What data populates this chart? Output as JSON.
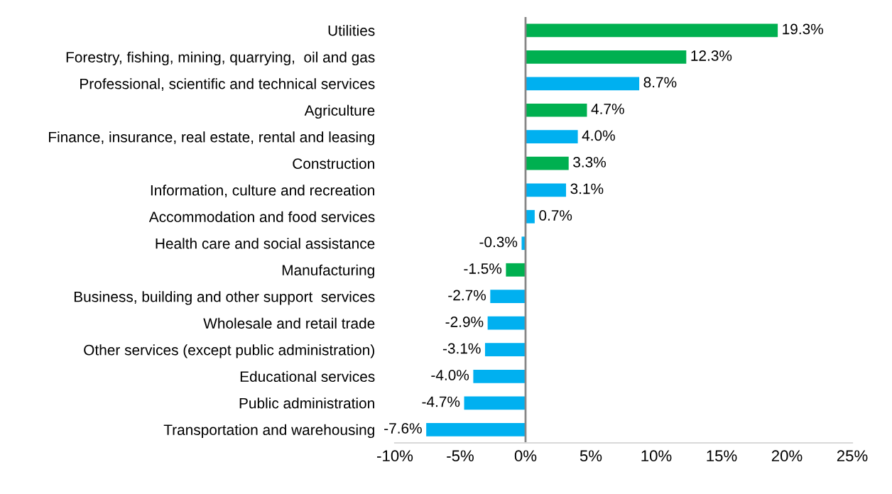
{
  "chart_data": {
    "type": "bar",
    "orientation": "horizontal",
    "categories": [
      "Utilities",
      "Forestry, fishing, mining, quarrying,  oil and gas",
      "Professional, scientific and technical services",
      "Agriculture",
      "Finance, insurance, real estate, rental and leasing",
      "Construction",
      "Information, culture and recreation",
      "Accommodation and food services",
      "Health care and social assistance",
      "Manufacturing",
      "Business, building and other support  services",
      "Wholesale and retail trade",
      "Other services (except public administration)",
      "Educational services",
      "Public administration",
      "Transportation and warehousing"
    ],
    "values": [
      19.3,
      12.3,
      8.7,
      4.7,
      4.0,
      3.3,
      3.1,
      0.7,
      -0.3,
      -1.5,
      -2.7,
      -2.9,
      -3.1,
      -4.0,
      -4.7,
      -7.6
    ],
    "colors": [
      "#00b050",
      "#00b050",
      "#00b0f0",
      "#00b050",
      "#00b0f0",
      "#00b050",
      "#00b0f0",
      "#00b0f0",
      "#00b0f0",
      "#00b050",
      "#00b0f0",
      "#00b0f0",
      "#00b0f0",
      "#00b0f0",
      "#00b0f0",
      "#00b0f0"
    ],
    "value_labels": [
      "19.3%",
      "12.3%",
      "8.7%",
      "4.7%",
      "4.0%",
      "3.3%",
      "3.1%",
      "0.7%",
      "-0.3%",
      "-1.5%",
      "-2.7%",
      "-2.9%",
      "-3.1%",
      "-4.0%",
      "-4.7%",
      "-7.6%"
    ],
    "xlim": [
      -10,
      25
    ],
    "xticks": [
      {
        "value": -10,
        "label": "-10%"
      },
      {
        "value": -5,
        "label": "-5%"
      },
      {
        "value": 0,
        "label": "0%"
      },
      {
        "value": 5,
        "label": "5%"
      },
      {
        "value": 10,
        "label": "10%"
      },
      {
        "value": 15,
        "label": "15%"
      },
      {
        "value": 20,
        "label": "20%"
      },
      {
        "value": 25,
        "label": "25%"
      }
    ],
    "ref_lines": [
      {
        "axis": "x",
        "value": 0,
        "color": "#868686"
      }
    ],
    "grid": false,
    "legend": false
  }
}
